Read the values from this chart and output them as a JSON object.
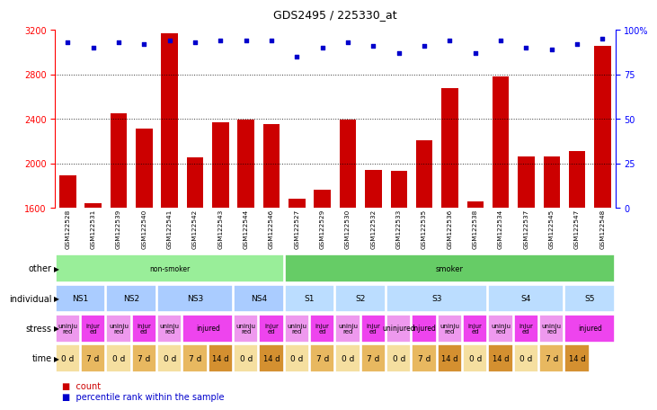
{
  "title": "GDS2495 / 225330_at",
  "samples": [
    "GSM122528",
    "GSM122531",
    "GSM122539",
    "GSM122540",
    "GSM122541",
    "GSM122542",
    "GSM122543",
    "GSM122544",
    "GSM122546",
    "GSM122527",
    "GSM122529",
    "GSM122530",
    "GSM122532",
    "GSM122533",
    "GSM122535",
    "GSM122536",
    "GSM122538",
    "GSM122534",
    "GSM122537",
    "GSM122545",
    "GSM122547",
    "GSM122548"
  ],
  "counts": [
    1890,
    1640,
    2450,
    2310,
    3170,
    2050,
    2370,
    2390,
    2350,
    1680,
    1760,
    2390,
    1940,
    1930,
    2210,
    2680,
    1660,
    2780,
    2060,
    2060,
    2110,
    3060
  ],
  "percentile": [
    93,
    90,
    93,
    92,
    94,
    93,
    94,
    94,
    94,
    85,
    90,
    93,
    91,
    87,
    91,
    94,
    87,
    94,
    90,
    89,
    92,
    95
  ],
  "ylim_left": [
    1600,
    3200
  ],
  "ylim_right": [
    0,
    100
  ],
  "yticks_left": [
    1600,
    2000,
    2400,
    2800,
    3200
  ],
  "yticks_right": [
    0,
    25,
    50,
    75,
    100
  ],
  "ytick_right_labels": [
    "0",
    "25",
    "50",
    "75",
    "100%"
  ],
  "bar_color": "#cc0000",
  "dot_color": "#0000cc",
  "other_row": [
    {
      "label": "non-smoker",
      "start": 0,
      "end": 9,
      "color": "#99ee99"
    },
    {
      "label": "smoker",
      "start": 9,
      "end": 22,
      "color": "#66cc66"
    }
  ],
  "individual_row": [
    {
      "label": "NS1",
      "start": 0,
      "end": 2,
      "color": "#aaccff"
    },
    {
      "label": "NS2",
      "start": 2,
      "end": 4,
      "color": "#aaccff"
    },
    {
      "label": "NS3",
      "start": 4,
      "end": 7,
      "color": "#aaccff"
    },
    {
      "label": "NS4",
      "start": 7,
      "end": 9,
      "color": "#aaccff"
    },
    {
      "label": "S1",
      "start": 9,
      "end": 11,
      "color": "#bbddff"
    },
    {
      "label": "S2",
      "start": 11,
      "end": 13,
      "color": "#bbddff"
    },
    {
      "label": "S3",
      "start": 13,
      "end": 17,
      "color": "#bbddff"
    },
    {
      "label": "S4",
      "start": 17,
      "end": 20,
      "color": "#bbddff"
    },
    {
      "label": "S5",
      "start": 20,
      "end": 22,
      "color": "#bbddff"
    }
  ],
  "stress_row": [
    {
      "label": "uninju\nred",
      "start": 0,
      "end": 1,
      "color": "#ee99ee"
    },
    {
      "label": "injur\ned",
      "start": 1,
      "end": 2,
      "color": "#ee44ee"
    },
    {
      "label": "uninju\nred",
      "start": 2,
      "end": 3,
      "color": "#ee99ee"
    },
    {
      "label": "injur\ned",
      "start": 3,
      "end": 4,
      "color": "#ee44ee"
    },
    {
      "label": "uninju\nred",
      "start": 4,
      "end": 5,
      "color": "#ee99ee"
    },
    {
      "label": "injured",
      "start": 5,
      "end": 7,
      "color": "#ee44ee"
    },
    {
      "label": "uninju\nred",
      "start": 7,
      "end": 8,
      "color": "#ee99ee"
    },
    {
      "label": "injur\ned",
      "start": 8,
      "end": 9,
      "color": "#ee44ee"
    },
    {
      "label": "uninju\nred",
      "start": 9,
      "end": 10,
      "color": "#ee99ee"
    },
    {
      "label": "injur\ned",
      "start": 10,
      "end": 11,
      "color": "#ee44ee"
    },
    {
      "label": "uninju\nred",
      "start": 11,
      "end": 12,
      "color": "#ee99ee"
    },
    {
      "label": "injur\ned",
      "start": 12,
      "end": 13,
      "color": "#ee44ee"
    },
    {
      "label": "uninjured",
      "start": 13,
      "end": 14,
      "color": "#ee99ee"
    },
    {
      "label": "injured",
      "start": 14,
      "end": 15,
      "color": "#ee44ee"
    },
    {
      "label": "uninju\nred",
      "start": 15,
      "end": 16,
      "color": "#ee99ee"
    },
    {
      "label": "injur\ned",
      "start": 16,
      "end": 17,
      "color": "#ee44ee"
    },
    {
      "label": "uninju\nred",
      "start": 17,
      "end": 18,
      "color": "#ee99ee"
    },
    {
      "label": "injur\ned",
      "start": 18,
      "end": 19,
      "color": "#ee44ee"
    },
    {
      "label": "uninju\nred",
      "start": 19,
      "end": 20,
      "color": "#ee99ee"
    },
    {
      "label": "injured",
      "start": 20,
      "end": 22,
      "color": "#ee44ee"
    }
  ],
  "time_row": [
    {
      "label": "0 d",
      "start": 0,
      "end": 1,
      "color": "#f5dfa0"
    },
    {
      "label": "7 d",
      "start": 1,
      "end": 2,
      "color": "#e8b860"
    },
    {
      "label": "0 d",
      "start": 2,
      "end": 3,
      "color": "#f5dfa0"
    },
    {
      "label": "7 d",
      "start": 3,
      "end": 4,
      "color": "#e8b860"
    },
    {
      "label": "0 d",
      "start": 4,
      "end": 5,
      "color": "#f5dfa0"
    },
    {
      "label": "7 d",
      "start": 5,
      "end": 6,
      "color": "#e8b860"
    },
    {
      "label": "14 d",
      "start": 6,
      "end": 7,
      "color": "#d49030"
    },
    {
      "label": "0 d",
      "start": 7,
      "end": 8,
      "color": "#f5dfa0"
    },
    {
      "label": "14 d",
      "start": 8,
      "end": 9,
      "color": "#d49030"
    },
    {
      "label": "0 d",
      "start": 9,
      "end": 10,
      "color": "#f5dfa0"
    },
    {
      "label": "7 d",
      "start": 10,
      "end": 11,
      "color": "#e8b860"
    },
    {
      "label": "0 d",
      "start": 11,
      "end": 12,
      "color": "#f5dfa0"
    },
    {
      "label": "7 d",
      "start": 12,
      "end": 13,
      "color": "#e8b860"
    },
    {
      "label": "0 d",
      "start": 13,
      "end": 14,
      "color": "#f5dfa0"
    },
    {
      "label": "7 d",
      "start": 14,
      "end": 15,
      "color": "#e8b860"
    },
    {
      "label": "14 d",
      "start": 15,
      "end": 16,
      "color": "#d49030"
    },
    {
      "label": "0 d",
      "start": 16,
      "end": 17,
      "color": "#f5dfa0"
    },
    {
      "label": "14 d",
      "start": 17,
      "end": 18,
      "color": "#d49030"
    },
    {
      "label": "0 d",
      "start": 18,
      "end": 19,
      "color": "#f5dfa0"
    },
    {
      "label": "7 d",
      "start": 19,
      "end": 20,
      "color": "#e8b860"
    },
    {
      "label": "14 d",
      "start": 20,
      "end": 21,
      "color": "#d49030"
    }
  ],
  "row_labels": [
    "other",
    "individual",
    "stress",
    "time"
  ],
  "legend_count_color": "#cc0000",
  "legend_dot_color": "#0000cc",
  "legend_count_label": "count",
  "legend_dot_label": "percentile rank within the sample",
  "bg_color": "#ffffff",
  "xticklabel_bg": "#d8d8d8"
}
